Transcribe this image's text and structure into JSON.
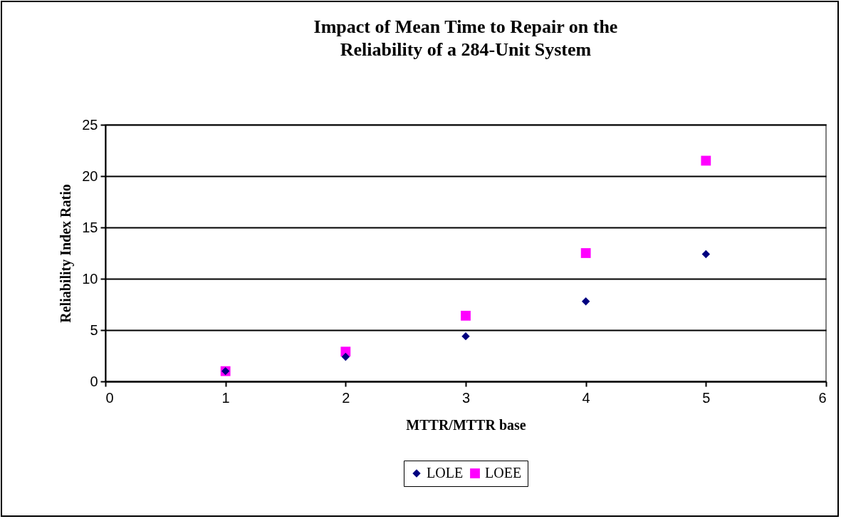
{
  "chart_data": {
    "type": "scatter",
    "title": [
      "Impact of Mean Time to Repair on the",
      "Reliability of a 284-Unit System"
    ],
    "xlabel": "MTTR/MTTR base",
    "ylabel": "Reliability Index Ratio",
    "x": [
      1,
      2,
      3,
      4,
      5
    ],
    "series": [
      {
        "name": "LOLE",
        "color": "#000080",
        "marker": "diamond",
        "values": [
          1.0,
          2.4,
          4.4,
          7.8,
          12.4
        ]
      },
      {
        "name": "LOEE",
        "color": "#ff00ff",
        "marker": "square",
        "values": [
          1.0,
          2.9,
          6.4,
          12.5,
          21.5
        ]
      }
    ],
    "xlim": [
      0,
      6
    ],
    "xticks": [
      0,
      1,
      2,
      3,
      4,
      5,
      6
    ],
    "ylim": [
      0,
      25
    ],
    "yticks": [
      0,
      5,
      10,
      15,
      20,
      25
    ],
    "grid": "y",
    "legend": "bottom"
  }
}
